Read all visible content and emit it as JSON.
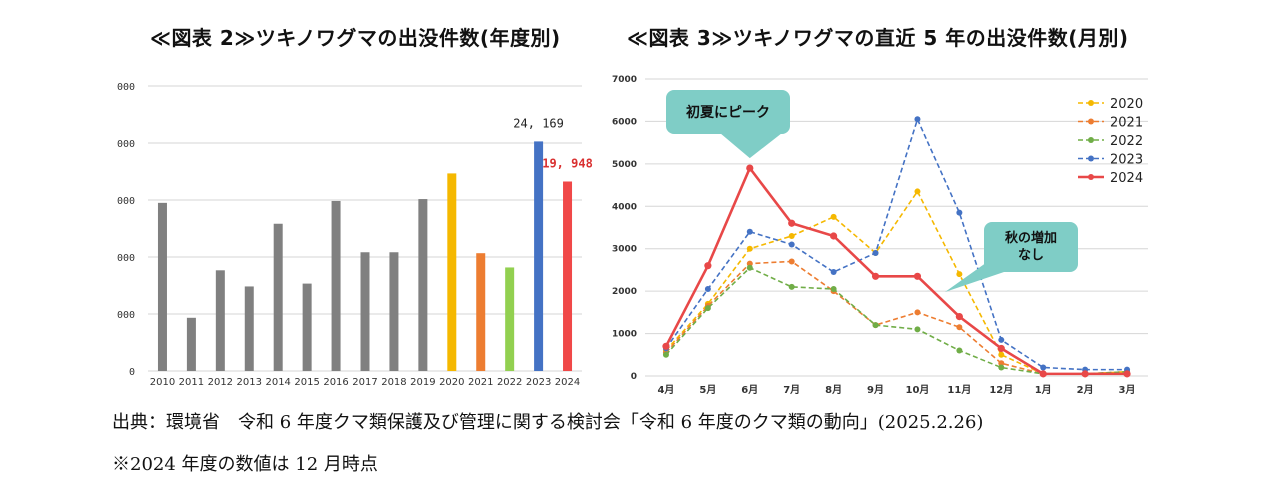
{
  "chart_data": [
    {
      "type": "bar",
      "title": "≪図表 2≫ツキノワグマの出没件数(年度別)",
      "categories": [
        "2010",
        "2011",
        "2012",
        "2013",
        "2014",
        "2015",
        "2016",
        "2017",
        "2018",
        "2019",
        "2020",
        "2021",
        "2022",
        "2023",
        "2024"
      ],
      "values": [
        17700,
        5600,
        10600,
        8900,
        15500,
        9200,
        17900,
        12500,
        12500,
        18100,
        20800,
        12400,
        10900,
        24169,
        19948
      ],
      "colors": [
        "#808080",
        "#808080",
        "#808080",
        "#808080",
        "#808080",
        "#808080",
        "#808080",
        "#808080",
        "#808080",
        "#808080",
        "#f5b800",
        "#ed7d31",
        "#92d050",
        "#4472c4",
        "#f04848"
      ],
      "ytick_labels": [
        "0",
        "000",
        "000",
        "000",
        "000",
        "000"
      ],
      "ylim": [
        0,
        30000
      ],
      "data_labels": [
        {
          "category": "2023",
          "text": "24, 169",
          "color": "#222222"
        },
        {
          "category": "2024",
          "text": "19, 948",
          "color": "#d93030"
        }
      ],
      "grid": true
    },
    {
      "type": "line",
      "title": "≪図表 3≫ツキノワグマの直近 5 年の出没件数(月別)",
      "categories": [
        "4月",
        "5月",
        "6月",
        "7月",
        "8月",
        "9月",
        "10月",
        "11月",
        "12月",
        "1月",
        "2月",
        "3月"
      ],
      "ylim": [
        0,
        7000
      ],
      "yticks": [
        "0",
        "1000",
        "2000",
        "3000",
        "4000",
        "5000",
        "6000",
        "7000"
      ],
      "legend_position": "top-right",
      "grid": true,
      "series": [
        {
          "name": "2020",
          "color": "#f5b800",
          "dashed": true,
          "values": [
            600,
            1700,
            3000,
            3300,
            3750,
            2900,
            4350,
            2400,
            500,
            50,
            50,
            100
          ]
        },
        {
          "name": "2021",
          "color": "#ed7d31",
          "dashed": true,
          "values": [
            550,
            1650,
            2650,
            2700,
            2000,
            1200,
            1500,
            1150,
            300,
            50,
            50,
            100
          ]
        },
        {
          "name": "2022",
          "color": "#70ad47",
          "dashed": true,
          "values": [
            500,
            1600,
            2550,
            2100,
            2050,
            1200,
            1100,
            600,
            200,
            50,
            50,
            100
          ]
        },
        {
          "name": "2023",
          "color": "#4472c4",
          "dashed": true,
          "values": [
            650,
            2050,
            3400,
            3100,
            2450,
            2900,
            6050,
            3850,
            850,
            200,
            150,
            150
          ]
        },
        {
          "name": "2024",
          "color": "#e84848",
          "dashed": false,
          "values": [
            700,
            2600,
            4900,
            3600,
            3300,
            2350,
            2350,
            1400,
            650,
            50,
            50,
            50
          ]
        }
      ],
      "annotations": [
        {
          "text": "初夏にピーク",
          "target_category": "6月"
        },
        {
          "text": "秋の増加\nなし",
          "target_category": "10月"
        }
      ]
    }
  ],
  "footer": {
    "source": "出典：環境省　令和 6 年度クマ類保護及び管理に関する検討会「令和 6 年度のクマ類の動向」(2025.2.26)",
    "note": "※2024 年度の数値は 12 月時点"
  }
}
